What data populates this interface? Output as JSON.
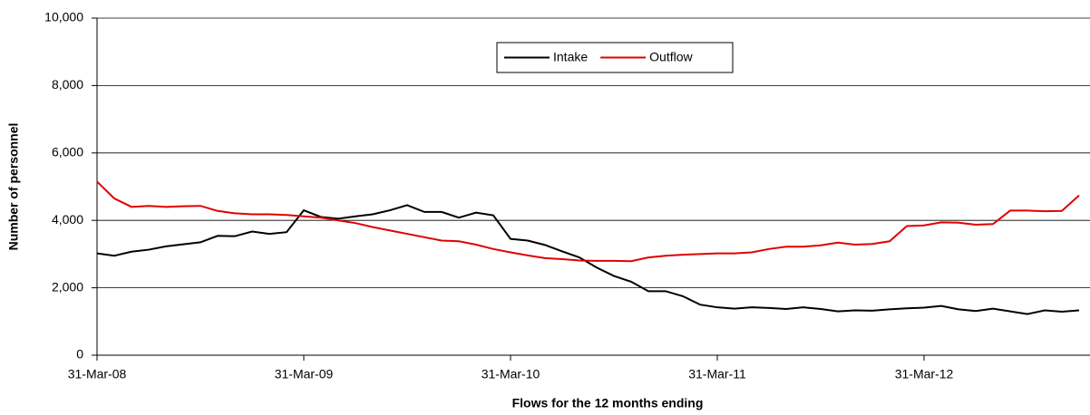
{
  "chart_data": {
    "type": "line",
    "x_label": "Flows for the 12 months ending",
    "y_label": "Number of personnel",
    "categories": [
      "31-Mar-08",
      null,
      null,
      null,
      null,
      null,
      null,
      null,
      null,
      null,
      null,
      null,
      "31-Mar-09",
      null,
      null,
      null,
      null,
      null,
      null,
      null,
      null,
      null,
      null,
      null,
      "31-Mar-10",
      null,
      null,
      null,
      null,
      null,
      null,
      null,
      null,
      null,
      null,
      null,
      "31-Mar-11",
      null,
      null,
      null,
      null,
      null,
      null,
      null,
      null,
      null,
      null,
      null,
      "31-Mar-12",
      null,
      null,
      null,
      null,
      null,
      null,
      null,
      null,
      null
    ],
    "series": [
      {
        "name": "Intake",
        "color": "#000000",
        "values": [
          3020,
          2950,
          3070,
          3130,
          3230,
          3290,
          3350,
          3540,
          3530,
          3670,
          3600,
          3650,
          4300,
          4100,
          4050,
          4120,
          4180,
          4300,
          4450,
          4250,
          4250,
          4080,
          4230,
          4150,
          3450,
          3400,
          3270,
          3080,
          2900,
          2600,
          2350,
          2180,
          1900,
          1900,
          1750,
          1500,
          1420,
          1380,
          1420,
          1400,
          1370,
          1420,
          1370,
          1300,
          1330,
          1320,
          1360,
          1390,
          1410,
          1460,
          1360,
          1310,
          1380,
          1300,
          1220,
          1330,
          1290,
          1330
        ]
      },
      {
        "name": "Outflow",
        "color": "#e00000",
        "values": [
          5150,
          4650,
          4400,
          4430,
          4400,
          4420,
          4430,
          4280,
          4210,
          4180,
          4180,
          4160,
          4120,
          4080,
          4000,
          3920,
          3800,
          3700,
          3600,
          3500,
          3400,
          3380,
          3280,
          3150,
          3050,
          2960,
          2880,
          2850,
          2810,
          2800,
          2800,
          2790,
          2900,
          2950,
          2980,
          3000,
          3020,
          3020,
          3050,
          3150,
          3220,
          3220,
          3260,
          3340,
          3280,
          3300,
          3380,
          3830,
          3850,
          3940,
          3930,
          3870,
          3890,
          4290,
          4290,
          4270,
          4280,
          4740
        ]
      }
    ],
    "ylim": [
      0,
      10000
    ],
    "yticks": [
      0,
      {
        "value": 2000,
        "label": "2,000"
      },
      {
        "value": 4000,
        "label": "4,000"
      },
      {
        "value": 6000,
        "label": "6,000"
      },
      {
        "value": 8000,
        "label": "8,000"
      },
      {
        "value": 10000,
        "label": "10,000"
      }
    ],
    "grid": true,
    "legend": "top"
  }
}
